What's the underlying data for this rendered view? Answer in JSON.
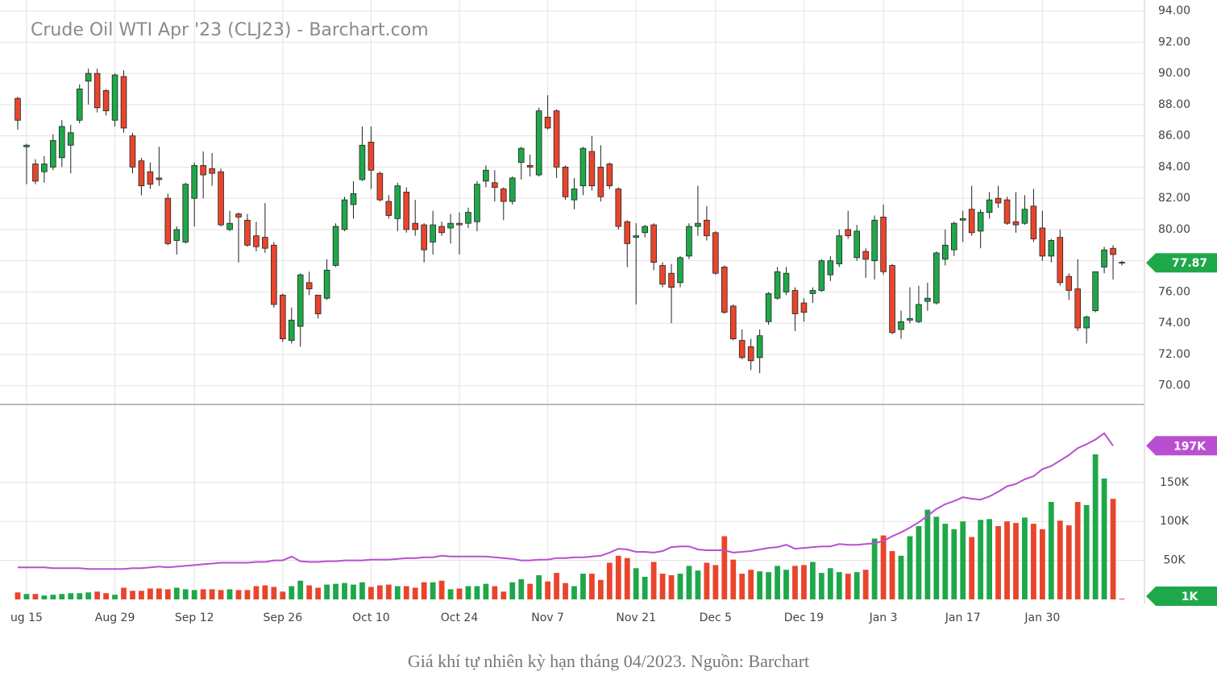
{
  "chart_data": {
    "type": "candlestick",
    "title": "Crude Oil WTI Apr '23 (CLJ23) - Barchart.com",
    "caption": "Giá khí tự nhiên kỳ hạn tháng 04/2023. Nguồn: Barchart",
    "categories": [
      null,
      "ug 15",
      null,
      null,
      null,
      null,
      null,
      null,
      null,
      null,
      null,
      "Aug 29",
      null,
      null,
      null,
      null,
      null,
      null,
      null,
      null,
      "Sep 12",
      null,
      null,
      null,
      null,
      null,
      null,
      null,
      null,
      null,
      "Sep 26",
      null,
      null,
      null,
      null,
      null,
      null,
      null,
      null,
      null,
      "Oct 10",
      null,
      null,
      null,
      null,
      null,
      null,
      null,
      null,
      null,
      "Oct 24",
      null,
      null,
      null,
      null,
      null,
      null,
      null,
      null,
      null,
      "Nov 7",
      null,
      null,
      null,
      null,
      null,
      null,
      null,
      null,
      null,
      "Nov 21",
      null,
      null,
      null,
      null,
      null,
      null,
      null,
      null,
      "Dec 5",
      null,
      null,
      null,
      null,
      null,
      null,
      null,
      null,
      null,
      "Dec 19",
      null,
      null,
      null,
      null,
      null,
      null,
      null,
      null,
      "Jan 3",
      null,
      null,
      null,
      null,
      null,
      null,
      null,
      null,
      "Jan 17",
      null,
      null,
      null,
      null,
      null,
      null,
      null,
      null,
      "Jan 30",
      null,
      null,
      null,
      null,
      null,
      null,
      null,
      null,
      null
    ],
    "open": [
      88.4,
      85.3,
      84.2,
      83.7,
      84.0,
      84.6,
      85.4,
      87.0,
      89.5,
      90.0,
      88.9,
      87.0,
      89.8,
      86.0,
      84.4,
      83.7,
      83.3,
      82.0,
      79.3,
      79.2,
      82.0,
      84.1,
      83.9,
      83.7,
      80.0,
      81.0,
      80.6,
      79.6,
      79.5,
      79.0,
      75.8,
      72.9,
      73.8,
      76.6,
      75.8,
      75.6,
      77.7,
      80.0,
      81.6,
      83.2,
      85.6,
      83.6,
      81.8,
      80.7,
      82.4,
      80.4,
      80.3,
      79.2,
      80.2,
      80.1,
      80.4,
      80.4,
      80.5,
      83.1,
      83.0,
      82.6,
      81.8,
      84.3,
      84.1,
      83.5,
      87.2,
      87.6,
      84.0,
      81.9,
      82.8,
      85.0,
      84.0,
      84.2,
      82.6,
      80.5,
      79.5,
      79.8,
      80.3,
      77.7,
      77.2,
      76.6,
      78.3,
      80.2,
      80.6,
      79.8,
      77.6,
      75.1,
      72.9,
      72.5,
      71.8,
      74.1,
      75.6,
      76.0,
      76.1,
      75.3,
      75.9,
      76.1,
      77.1,
      77.8,
      80.0,
      78.2,
      78.6,
      78.0,
      80.8,
      77.7,
      73.6,
      74.2,
      74.1,
      75.4,
      75.3,
      78.1,
      78.7,
      80.6,
      81.3,
      79.9,
      81.1,
      82.0,
      81.9,
      80.5,
      80.4,
      81.5,
      80.1,
      78.3,
      79.5,
      77.0,
      76.2,
      73.7,
      74.8,
      77.6,
      78.8,
      77.9
    ],
    "high": [
      88.5,
      85.5,
      84.5,
      84.7,
      86.1,
      87.0,
      86.7,
      89.3,
      90.3,
      90.3,
      89.0,
      90.0,
      90.2,
      86.2,
      84.6,
      84.3,
      85.3,
      82.3,
      80.2,
      83.0,
      84.3,
      85.0,
      84.9,
      83.9,
      81.2,
      81.1,
      81.0,
      80.5,
      81.7,
      79.2,
      75.9,
      75.0,
      77.2,
      77.3,
      75.8,
      78.1,
      80.4,
      82.1,
      83.1,
      86.6,
      86.6,
      83.7,
      82.2,
      83.0,
      82.7,
      81.9,
      80.4,
      81.2,
      80.5,
      81.0,
      81.1,
      81.4,
      83.1,
      84.1,
      83.8,
      82.7,
      83.4,
      85.3,
      84.8,
      87.8,
      88.6,
      87.7,
      84.1,
      83.3,
      85.3,
      86.0,
      85.4,
      84.3,
      82.7,
      80.6,
      80.4,
      80.3,
      80.4,
      77.9,
      77.8,
      78.3,
      80.4,
      82.8,
      81.5,
      79.9,
      77.7,
      75.2,
      73.6,
      73.0,
      73.6,
      76.0,
      77.6,
      77.6,
      76.3,
      75.6,
      76.3,
      78.1,
      78.3,
      80.0,
      81.2,
      80.3,
      78.8,
      80.9,
      81.6,
      77.8,
      74.8,
      76.3,
      76.4,
      76.6,
      78.6,
      80.0,
      80.5,
      81.2,
      82.8,
      81.3,
      82.4,
      82.8,
      82.1,
      82.4,
      82.2,
      82.6,
      81.2,
      79.4,
      80.0,
      77.2,
      78.1,
      74.5,
      77.3,
      78.9,
      79.0,
      78.0
    ],
    "low": [
      86.4,
      82.9,
      82.9,
      83.0,
      83.8,
      84.0,
      83.6,
      86.8,
      88.0,
      87.5,
      87.3,
      86.6,
      86.2,
      83.6,
      82.2,
      82.6,
      82.8,
      79.0,
      78.4,
      79.1,
      80.2,
      82.0,
      82.8,
      80.2,
      79.9,
      77.9,
      78.9,
      78.6,
      78.5,
      75.0,
      72.8,
      72.7,
      72.5,
      75.8,
      74.3,
      75.5,
      77.6,
      79.9,
      80.7,
      83.1,
      82.6,
      81.8,
      80.7,
      79.9,
      79.8,
      79.6,
      77.9,
      78.4,
      79.6,
      79.1,
      78.4,
      80.1,
      79.9,
      82.7,
      81.8,
      80.6,
      81.6,
      83.2,
      83.4,
      83.4,
      86.4,
      83.3,
      81.9,
      81.3,
      82.2,
      82.5,
      81.8,
      82.6,
      80.0,
      77.6,
      75.2,
      79.5,
      77.4,
      76.3,
      74.0,
      76.3,
      78.1,
      79.6,
      79.3,
      77.1,
      74.6,
      72.9,
      71.7,
      71.0,
      70.8,
      73.9,
      75.5,
      75.8,
      73.5,
      74.1,
      75.3,
      76.0,
      76.7,
      77.6,
      79.4,
      78.0,
      76.9,
      76.8,
      77.1,
      73.3,
      73.0,
      74.0,
      74.0,
      74.8,
      75.2,
      77.7,
      78.3,
      79.2,
      79.6,
      78.8,
      80.7,
      81.4,
      80.3,
      79.8,
      80.3,
      79.2,
      78.0,
      77.9,
      76.4,
      75.5,
      73.5,
      72.7,
      74.7,
      77.2,
      76.8,
      77.7
    ],
    "close": [
      87.0,
      85.4,
      83.1,
      84.2,
      85.7,
      86.6,
      86.2,
      89.0,
      90.0,
      87.8,
      87.6,
      89.9,
      86.5,
      84.0,
      82.8,
      82.9,
      83.2,
      79.1,
      80.0,
      82.9,
      84.1,
      83.5,
      83.6,
      80.3,
      80.4,
      80.8,
      79.0,
      78.9,
      78.8,
      75.2,
      73.0,
      74.2,
      77.1,
      76.2,
      74.6,
      77.4,
      80.2,
      81.9,
      82.3,
      85.4,
      83.8,
      81.9,
      80.9,
      82.8,
      80.0,
      80.0,
      78.7,
      80.3,
      79.8,
      80.4,
      80.3,
      81.1,
      82.9,
      83.8,
      82.7,
      81.8,
      83.3,
      85.2,
      84.0,
      87.6,
      86.5,
      84.0,
      82.1,
      82.6,
      85.2,
      82.8,
      82.1,
      82.8,
      80.2,
      79.1,
      79.6,
      80.2,
      77.9,
      76.5,
      76.3,
      78.2,
      80.2,
      80.4,
      79.6,
      77.2,
      74.7,
      73.0,
      71.8,
      71.6,
      73.2,
      75.9,
      77.3,
      77.2,
      74.6,
      74.7,
      76.1,
      78.0,
      78.0,
      79.6,
      79.6,
      79.9,
      78.1,
      80.6,
      77.3,
      73.4,
      74.1,
      74.3,
      75.2,
      75.6,
      78.5,
      79.0,
      80.4,
      80.7,
      79.8,
      81.1,
      81.9,
      81.7,
      80.4,
      80.3,
      81.3,
      79.4,
      78.3,
      79.3,
      76.6,
      76.1,
      73.7,
      74.4,
      77.3,
      78.7,
      78.4,
      77.87
    ],
    "volume": [
      9000,
      7000,
      7000,
      5000,
      6000,
      7000,
      8000,
      8000,
      9000,
      10000,
      8000,
      6000,
      15000,
      11000,
      11000,
      14000,
      14000,
      13000,
      15000,
      13000,
      12000,
      13000,
      13000,
      12000,
      13000,
      12000,
      12000,
      17000,
      18000,
      16000,
      10000,
      17000,
      24000,
      18000,
      15000,
      19000,
      20000,
      21000,
      19000,
      22000,
      16000,
      18000,
      19000,
      17000,
      17000,
      15000,
      22000,
      22000,
      24000,
      13000,
      14000,
      17000,
      17000,
      20000,
      17000,
      10000,
      22000,
      26000,
      20000,
      31000,
      23000,
      34000,
      21000,
      17000,
      33000,
      33000,
      25000,
      47000,
      56000,
      53000,
      40000,
      29000,
      48000,
      33000,
      31000,
      33000,
      43000,
      37000,
      47000,
      44000,
      81000,
      51000,
      33000,
      38000,
      36000,
      35000,
      43000,
      38000,
      43000,
      44000,
      48000,
      34000,
      40000,
      35000,
      33000,
      35000,
      38000,
      78000,
      82000,
      62000,
      56000,
      81000,
      94000,
      115000,
      106000,
      97000,
      90000,
      100000,
      80000,
      102000,
      103000,
      94000,
      100000,
      98000,
      105000,
      97000,
      90000,
      125000,
      101000,
      95000,
      125000,
      121000,
      186000,
      155000,
      129000,
      1000
    ],
    "open_interest": [
      41000,
      41000,
      41000,
      41000,
      40000,
      40000,
      40000,
      40000,
      39000,
      39000,
      39000,
      39000,
      39000,
      40000,
      40000,
      41000,
      42000,
      41000,
      42000,
      43000,
      44000,
      45000,
      46000,
      47000,
      47000,
      47000,
      47000,
      48000,
      48000,
      50000,
      50000,
      55000,
      49000,
      48000,
      48000,
      49000,
      49000,
      50000,
      50000,
      50000,
      51000,
      51000,
      51000,
      52000,
      53000,
      53000,
      54000,
      54000,
      56000,
      55000,
      55000,
      55000,
      55000,
      55000,
      54000,
      53000,
      52000,
      50000,
      50000,
      51000,
      51000,
      53000,
      53000,
      54000,
      54000,
      55000,
      56000,
      60000,
      65000,
      64000,
      61000,
      61000,
      60000,
      62000,
      67000,
      68000,
      68000,
      64000,
      63000,
      63000,
      63000,
      60000,
      61000,
      62000,
      64000,
      66000,
      67000,
      70000,
      65000,
      66000,
      67000,
      68000,
      68000,
      71000,
      70000,
      70000,
      71000,
      72000,
      75000,
      81000,
      86000,
      92000,
      99000,
      107000,
      116000,
      122000,
      126000,
      131000,
      129000,
      128000,
      132000,
      138000,
      145000,
      148000,
      154000,
      158000,
      167000,
      171000,
      178000,
      185000,
      194000,
      199000,
      205000,
      213000,
      197000,
      null
    ],
    "open_interest_last_label": "197K",
    "volume_last_label": "1K",
    "ylim": [
      68.8,
      94.7
    ],
    "yticks": [
      {
        "value": 70,
        "label": "70.00"
      },
      {
        "value": 72,
        "label": "72.00"
      },
      {
        "value": 74,
        "label": "74.00"
      },
      {
        "value": 76,
        "label": "76.00"
      },
      {
        "value": 78,
        "label": "78.00"
      },
      {
        "value": 80,
        "label": "80.00"
      },
      {
        "value": 82,
        "label": "82.00"
      },
      {
        "value": 84,
        "label": "84.00"
      },
      {
        "value": 86,
        "label": "86.00"
      },
      {
        "value": 88,
        "label": "88.00"
      },
      {
        "value": 90,
        "label": "90.00"
      },
      {
        "value": 92,
        "label": "92.00"
      },
      {
        "value": 94,
        "label": "94.00"
      }
    ],
    "volume_ylim": [
      0,
      250000
    ],
    "volume_yticks": [
      {
        "value": 50000,
        "label": "50K"
      },
      {
        "value": 100000,
        "label": "100K"
      },
      {
        "value": 150000,
        "label": "150K"
      }
    ],
    "up_color": "#1fa84a",
    "down_color": "#e9452d",
    "open_interest_color": "#b94fd0",
    "grid": true
  }
}
